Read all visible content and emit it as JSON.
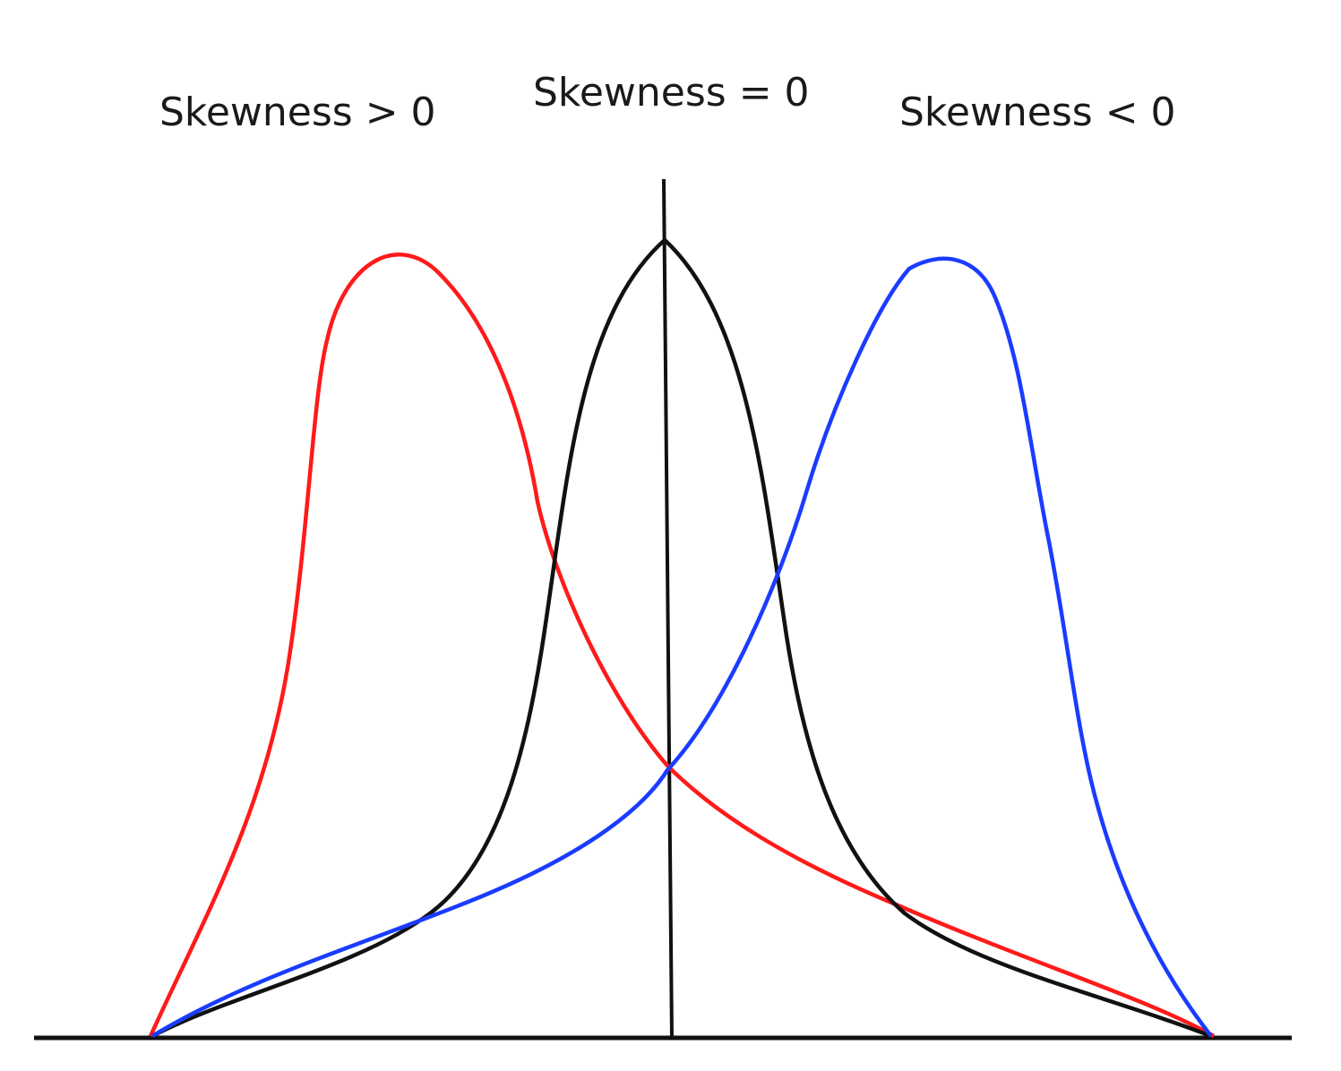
{
  "labels": {
    "positive_skew": "Skewness > 0",
    "zero_skew": "Skewness = 0",
    "negative_skew": "Skewness < 0"
  },
  "colors": {
    "positive_skew": "#ff1a1a",
    "zero_skew": "#111111",
    "negative_skew": "#1a3cff",
    "axis": "#111111"
  },
  "curves": [
    {
      "id": "positive_skew",
      "description": "right-skewed curve, peak left of center"
    },
    {
      "id": "zero_skew",
      "description": "symmetric curve, peak at center"
    },
    {
      "id": "negative_skew",
      "description": "left-skewed curve, peak right of center"
    }
  ]
}
